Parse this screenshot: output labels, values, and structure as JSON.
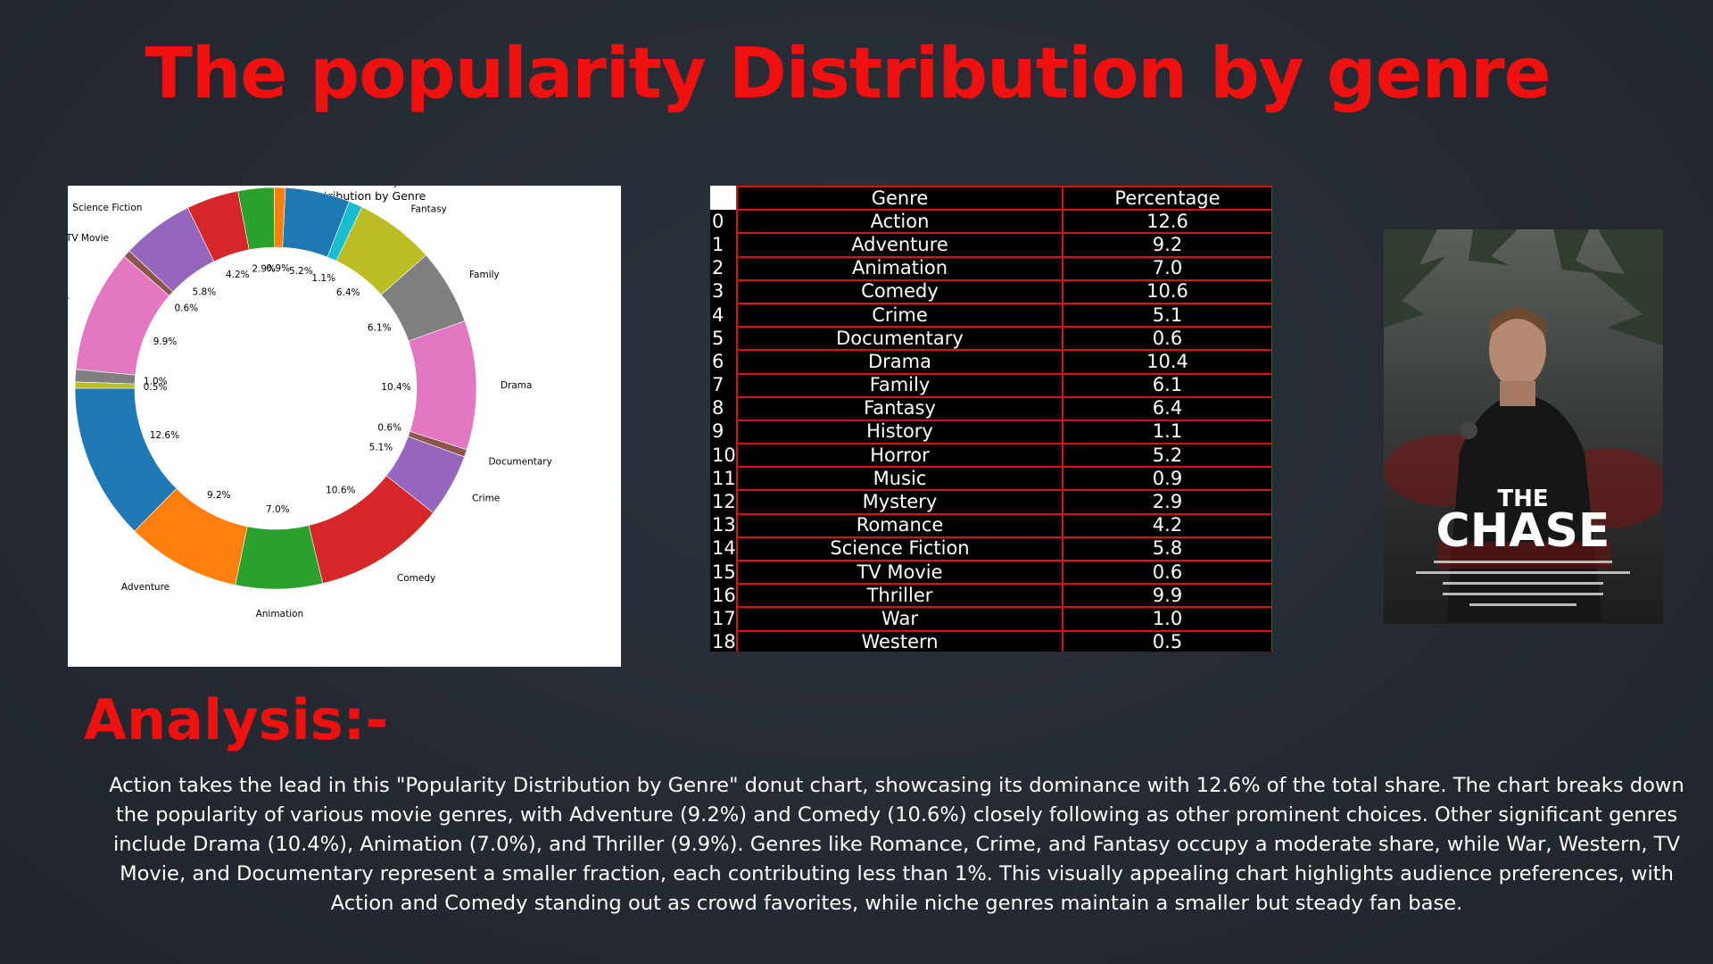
{
  "title": "The popularity Distribution by genre",
  "chart_data": {
    "type": "pie",
    "subtype": "donut",
    "title": "Popularity Distribution by Genre",
    "categories": [
      "Action",
      "Adventure",
      "Animation",
      "Comedy",
      "Crime",
      "Documentary",
      "Drama",
      "Family",
      "Fantasy",
      "History",
      "Horror",
      "Music",
      "Mystery",
      "Romance",
      "Science Fiction",
      "TV Movie",
      "Thriller",
      "War",
      "Western"
    ],
    "values": [
      12.6,
      9.2,
      7.0,
      10.6,
      5.1,
      0.6,
      10.4,
      6.1,
      6.4,
      1.1,
      5.2,
      0.9,
      2.9,
      4.2,
      5.8,
      0.6,
      9.9,
      1.0,
      0.5
    ],
    "value_labels": [
      "12.6%",
      "9.2%",
      "7.0%",
      "10.6%",
      "5.1%",
      "0.6%",
      "10.4%",
      "6.1%",
      "6.4%",
      "1.1%",
      "5.2%",
      "0.9%",
      "2.9%",
      "4.2%",
      "5.8%",
      "0.6%",
      "9.9%",
      "1.0%",
      "0.5%"
    ],
    "colors": [
      "#1f77b4",
      "#ff7f0e",
      "#2ca02c",
      "#d62728",
      "#9467bd",
      "#8c564b",
      "#e377c2",
      "#7f7f7f",
      "#bcbd22",
      "#17becf",
      "#1f77b4",
      "#ff7f0e",
      "#2ca02c",
      "#d62728",
      "#9467bd",
      "#8c564b",
      "#e377c2",
      "#7f7f7f",
      "#bcbd22"
    ],
    "start_angle_deg": 180,
    "direction": "counterclockwise"
  },
  "table": {
    "headers": [
      "Genre",
      "Percentage"
    ],
    "rows": [
      {
        "index": "0",
        "genre": "Action",
        "percentage": "12.6"
      },
      {
        "index": "1",
        "genre": "Adventure",
        "percentage": "9.2"
      },
      {
        "index": "2",
        "genre": "Animation",
        "percentage": "7.0"
      },
      {
        "index": "3",
        "genre": "Comedy",
        "percentage": "10.6"
      },
      {
        "index": "4",
        "genre": "Crime",
        "percentage": "5.1"
      },
      {
        "index": "5",
        "genre": "Documentary",
        "percentage": "0.6"
      },
      {
        "index": "6",
        "genre": "Drama",
        "percentage": "10.4"
      },
      {
        "index": "7",
        "genre": "Family",
        "percentage": "6.1"
      },
      {
        "index": "8",
        "genre": "Fantasy",
        "percentage": "6.4"
      },
      {
        "index": "9",
        "genre": "History",
        "percentage": "1.1"
      },
      {
        "index": "10",
        "genre": "Horror",
        "percentage": "5.2"
      },
      {
        "index": "11",
        "genre": "Music",
        "percentage": "0.9"
      },
      {
        "index": "12",
        "genre": "Mystery",
        "percentage": "2.9"
      },
      {
        "index": "13",
        "genre": "Romance",
        "percentage": "4.2"
      },
      {
        "index": "14",
        "genre": "Science Fiction",
        "percentage": "5.8"
      },
      {
        "index": "15",
        "genre": "TV Movie",
        "percentage": "0.6"
      },
      {
        "index": "16",
        "genre": "Thriller",
        "percentage": "9.9"
      },
      {
        "index": "17",
        "genre": "War",
        "percentage": "1.0"
      },
      {
        "index": "18",
        "genre": "Western",
        "percentage": "0.5"
      }
    ]
  },
  "poster": {
    "the": "THE",
    "title": "CHASE"
  },
  "analysis": {
    "heading": "Analysis:-",
    "body": "Action takes the lead in this \"Popularity Distribution by Genre\" donut chart, showcasing its dominance with 12.6% of the total share. The chart breaks down the popularity of various movie genres, with Adventure (9.2%) and Comedy (10.6%) closely following as other prominent choices. Other significant genres include Drama (10.4%), Animation (7.0%), and Thriller (9.9%). Genres like Romance, Crime, and Fantasy occupy a moderate share, while War, Western, TV Movie, and Documentary represent a smaller fraction, each contributing less than 1%. This visually appealing chart highlights audience preferences, with Action and Comedy standing out as crowd favorites, while niche genres maintain a smaller but steady fan base."
  }
}
